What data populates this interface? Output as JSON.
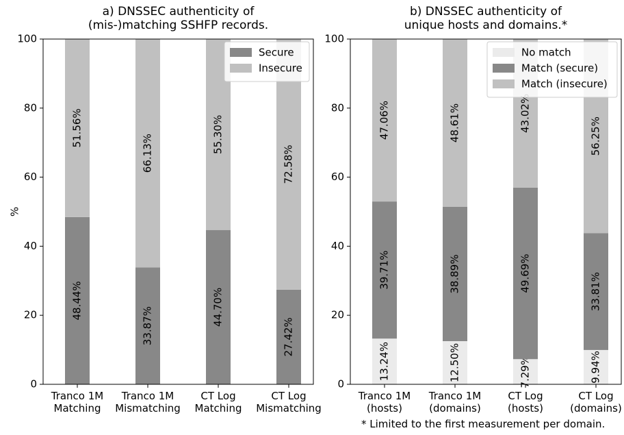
{
  "footnote": "* Limited to the first measurement per domain.",
  "chart_data": [
    {
      "type": "bar",
      "stacked": true,
      "title": "a) DNSSEC authenticity of\n(mis-)matching SSHFP records.",
      "ylabel": "%",
      "ylim": [
        0,
        100
      ],
      "yticks": [
        "0",
        "20",
        "40",
        "60",
        "80",
        "100"
      ],
      "categories": [
        "Tranco 1M\nMatching",
        "Tranco 1M\nMismatching",
        "CT Log\nMatching",
        "CT Log\nMismatching"
      ],
      "legend_position": "top-right",
      "series": [
        {
          "name": "Secure",
          "color": "#888888",
          "values": [
            48.44,
            33.87,
            44.7,
            27.42
          ],
          "labels": [
            "48.44%",
            "33.87%",
            "44.70%",
            "27.42%"
          ]
        },
        {
          "name": "Insecure",
          "color": "#c0c0c0",
          "values": [
            51.56,
            66.13,
            55.3,
            72.58
          ],
          "labels": [
            "51.56%",
            "66.13%",
            "55.30%",
            "72.58%"
          ]
        }
      ]
    },
    {
      "type": "bar",
      "stacked": true,
      "title": "b) DNSSEC authenticity of\nunique hosts and domains.*",
      "ylabel": "",
      "ylim": [
        0,
        100
      ],
      "yticks": [
        "0",
        "20",
        "40",
        "60",
        "80",
        "100"
      ],
      "categories": [
        "Tranco 1M\n(hosts)",
        "Tranco 1M\n(domains)",
        "CT Log\n(hosts)",
        "CT Log\n(domains)"
      ],
      "legend_position": "top-right",
      "series": [
        {
          "name": "No match",
          "color": "#ebebeb",
          "values": [
            13.24,
            12.5,
            7.29,
            9.94
          ],
          "labels": [
            "13.24%",
            "12.50%",
            "7.29%",
            "9.94%"
          ]
        },
        {
          "name": "Match (secure)",
          "color": "#888888",
          "values": [
            39.71,
            38.89,
            49.69,
            33.81
          ],
          "labels": [
            "39.71%",
            "38.89%",
            "49.69%",
            "33.81%"
          ]
        },
        {
          "name": "Match (insecure)",
          "color": "#c0c0c0",
          "values": [
            47.06,
            48.61,
            43.02,
            56.25
          ],
          "labels": [
            "47.06%",
            "48.61%",
            "43.02%",
            "56.25%"
          ]
        }
      ]
    }
  ]
}
